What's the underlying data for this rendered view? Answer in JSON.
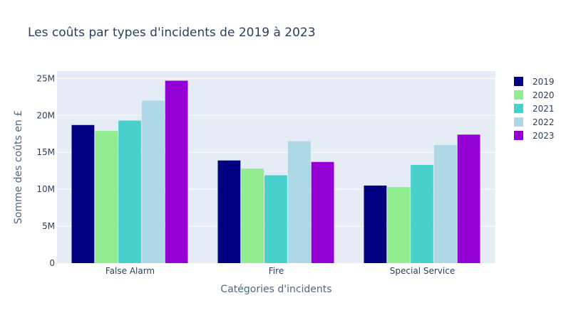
{
  "chart_data": {
    "type": "bar",
    "title": "Les coûts par types d'incidents de 2019 à 2023",
    "xlabel": "Catégories d'incidents",
    "ylabel": "Somme des coûts en £",
    "categories": [
      "False Alarm",
      "Fire",
      "Special Service"
    ],
    "ylim": [
      0,
      26000000
    ],
    "yticks": [
      0,
      5000000,
      10000000,
      15000000,
      20000000,
      25000000
    ],
    "ytick_labels": [
      "0",
      "5M",
      "10M",
      "15M",
      "20M",
      "25M"
    ],
    "grid": true,
    "legend_position": "top-right",
    "series": [
      {
        "name": "2019",
        "color": "#000080",
        "values": [
          18700000,
          13900000,
          10500000
        ]
      },
      {
        "name": "2020",
        "color": "#90ee90",
        "values": [
          17900000,
          12800000,
          10300000
        ]
      },
      {
        "name": "2021",
        "color": "#48d1cc",
        "values": [
          19300000,
          11900000,
          13300000
        ]
      },
      {
        "name": "2022",
        "color": "#add8e6",
        "values": [
          22000000,
          16500000,
          16000000
        ]
      },
      {
        "name": "2023",
        "color": "#9400d3",
        "values": [
          24700000,
          13700000,
          17400000
        ]
      }
    ]
  }
}
